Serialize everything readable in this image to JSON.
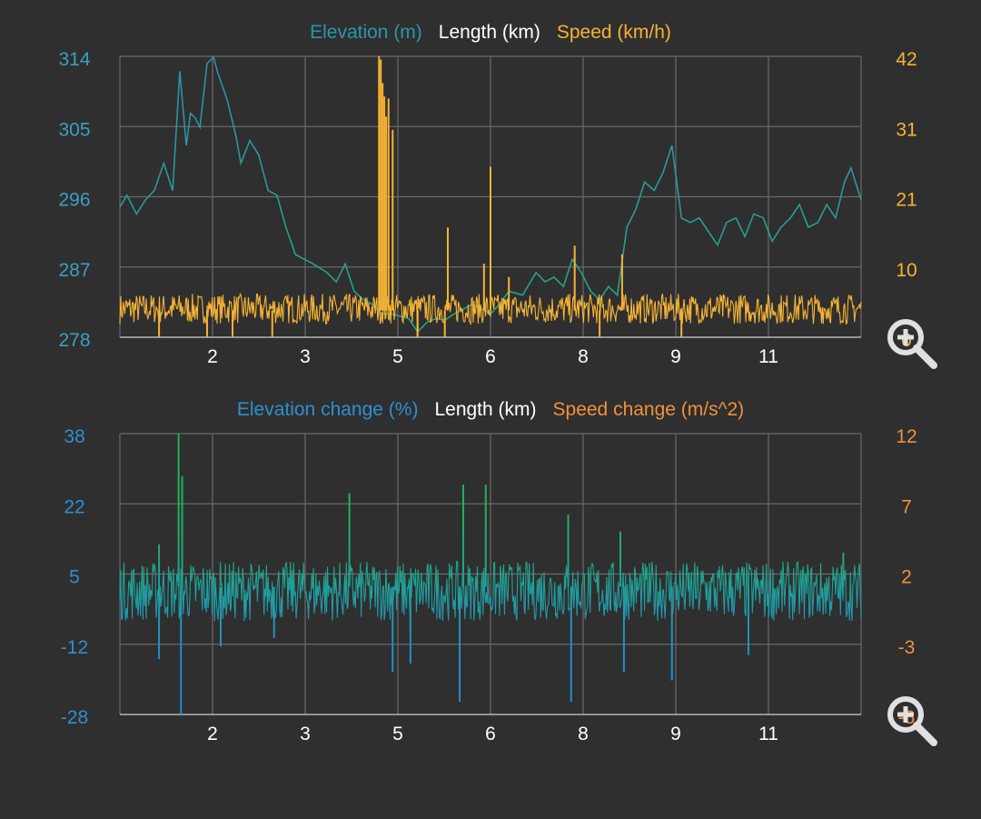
{
  "colors": {
    "background": "#2f2f2f",
    "grid": "#6a6a6a",
    "elevation": "#2a97a8",
    "elevation_line_top": "#1f9e8a",
    "elevation_line_bottom": "#2a88b8",
    "length": "#ffffff",
    "speed": "#f5b335",
    "elev_change": "#2e8fd1",
    "elev_change_top": "#22b25a",
    "elev_change_bottom": "#1f8fd0",
    "speed_change": "#f0913c"
  },
  "chart_data": [
    {
      "type": "line",
      "legend": [
        {
          "label": "Elevation (m)",
          "color_key": "elevation"
        },
        {
          "label": "Length (km)",
          "color_key": "length"
        },
        {
          "label": "Speed (km/h)",
          "color_key": "speed"
        }
      ],
      "legend_placement": "top-center",
      "grid": true,
      "xlim": [
        0,
        12.5
      ],
      "x_ticks": [
        "2",
        "3",
        "5",
        "6",
        "8",
        "9",
        "11"
      ],
      "y_left_ticks": [
        "314",
        "305",
        "296",
        "287",
        "278"
      ],
      "y_left_lim": [
        278,
        314
      ],
      "y_right_ticks": [
        "42",
        "31",
        "21",
        "10",
        "0"
      ],
      "y_right_lim": [
        0,
        42
      ],
      "series": [
        {
          "name": "Elevation (m)",
          "axis": "left",
          "x": [
            0,
            0.12,
            0.28,
            0.43,
            0.58,
            0.74,
            0.89,
            1.01,
            1.12,
            1.19,
            1.27,
            1.35,
            1.47,
            1.58,
            1.65,
            1.81,
            1.96,
            2.04,
            2.19,
            2.34,
            2.5,
            2.65,
            2.8,
            2.96,
            3.11,
            3.26,
            3.49,
            3.65,
            3.8,
            3.95,
            4.11,
            4.26,
            4.41,
            4.57,
            4.72,
            4.87,
            5.02,
            5.18,
            5.33,
            5.48,
            5.64,
            5.79,
            5.94,
            6.1,
            6.25,
            6.4,
            6.56,
            6.79,
            7.02,
            7.17,
            7.32,
            7.48,
            7.63,
            7.78,
            7.94,
            8.09,
            8.24,
            8.39,
            8.55,
            8.7,
            8.85,
            9.01,
            9.16,
            9.31,
            9.47,
            9.62,
            9.77,
            9.93,
            10.08,
            10.23,
            10.39,
            10.54,
            10.69,
            10.85,
            11.0,
            11.15,
            11.31,
            11.46,
            11.61,
            11.77,
            11.92,
            12.07,
            12.22,
            12.33,
            12.5
          ],
          "y": [
            294.7,
            296.2,
            293.8,
            295.6,
            296.8,
            300.3,
            296.8,
            312.1,
            302.6,
            306.7,
            306.1,
            304.9,
            313.1,
            313.9,
            311.9,
            308.4,
            303.7,
            300.3,
            303.2,
            301.4,
            296.8,
            296.2,
            292.1,
            288.6,
            288.0,
            287.4,
            286.3,
            285.1,
            287.4,
            283.9,
            282.8,
            282.2,
            281.0,
            281.0,
            280.7,
            280.4,
            278.7,
            279.9,
            280.4,
            280.2,
            281.0,
            281.6,
            282.2,
            281.6,
            281.0,
            282.2,
            283.9,
            283.4,
            286.3,
            285.1,
            285.7,
            284.5,
            288.0,
            286.3,
            283.9,
            282.8,
            284.5,
            283.4,
            292.1,
            294.4,
            297.9,
            296.8,
            299.1,
            302.6,
            293.3,
            292.7,
            293.3,
            291.5,
            289.8,
            292.7,
            293.3,
            290.9,
            293.8,
            293.3,
            290.3,
            292.1,
            293.3,
            295.0,
            292.1,
            292.7,
            295.0,
            293.3,
            297.9,
            299.7,
            295.6
          ]
        },
        {
          "name": "Speed (km/h)",
          "axis": "right",
          "baseline_range": [
            2,
            6.5
          ],
          "spikes": {
            "x": [
              4.37,
              4.4,
              4.43,
              4.46,
              4.49,
              4.53,
              4.6,
              5.53,
              6.14,
              6.25,
              6.56,
              7.67,
              8.47,
              0.66,
              1.47,
              2.57,
              5.02,
              5.48,
              5.02,
              9.47,
              8.09,
              1.9
            ],
            "y": [
              42,
              41.5,
              38,
              36,
              33,
              35.7,
              31,
              16.4,
              11,
              25.5,
              9,
              13.7,
              12.4,
              0,
              0,
              0,
              0,
              0,
              0,
              0,
              0,
              0
            ]
          }
        }
      ]
    },
    {
      "type": "line",
      "legend": [
        {
          "label": "Elevation change (%)",
          "color_key": "elev_change"
        },
        {
          "label": "Length (km)",
          "color_key": "length"
        },
        {
          "label": "Speed change (m/s^2)",
          "color_key": "speed_change"
        }
      ],
      "legend_placement": "top-center",
      "grid": true,
      "xlim": [
        0,
        12.5
      ],
      "x_ticks": [
        "2",
        "3",
        "5",
        "6",
        "8",
        "9",
        "11"
      ],
      "y_left_ticks": [
        "38",
        "22",
        "5",
        "-12",
        "-28"
      ],
      "y_left_lim": [
        -28,
        38
      ],
      "y_right_ticks": [
        "12",
        "7",
        "2",
        "-3",
        "-8"
      ],
      "y_right_lim": [
        -8,
        12
      ],
      "series": [
        {
          "name": "Elevation change (%)",
          "axis": "left",
          "baseline_range": [
            -6,
            8
          ],
          "spikes": {
            "x": [
              0.99,
              1.03,
              1.05,
              0.66,
              0.66,
              3.87,
              5.79,
              6.17,
              7.56,
              8.44,
              5.73,
              7.61,
              4.6,
              9.31,
              8.5,
              1.7,
              2.6,
              4.9,
              10.6,
              12.2
            ],
            "y": [
              38,
              -28,
              28,
              12,
              -15,
              24,
              26,
              26,
              19,
              15,
              -25,
              -25,
              -18,
              -20,
              -18,
              -12,
              -10,
              -16,
              -14,
              10
            ]
          }
        },
        {
          "name": "Speed change (m/s^2)",
          "axis": "right"
        }
      ]
    }
  ]
}
